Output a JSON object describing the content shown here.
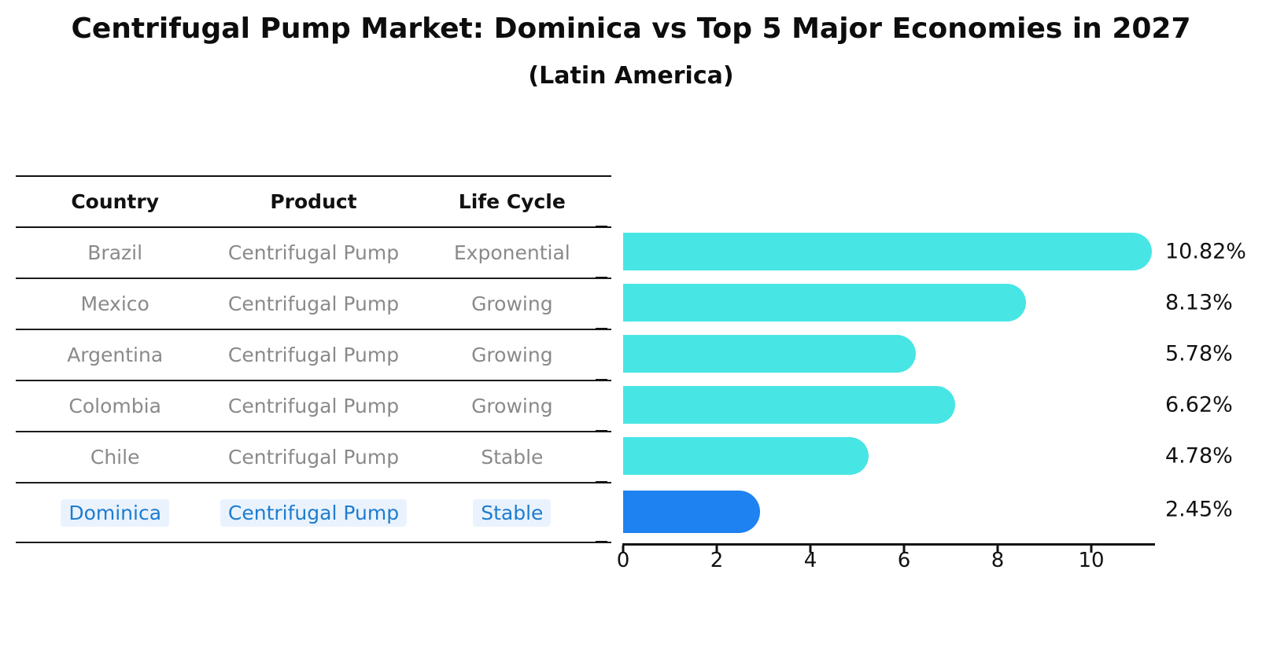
{
  "title": "Centrifugal Pump Market: Dominica vs Top 5 Major Economies in 2027",
  "subtitle": "(Latin America)",
  "table": {
    "headers": [
      "Country",
      "Product",
      "Life Cycle"
    ],
    "rows": [
      {
        "country": "Brazil",
        "product": "Centrifugal Pump",
        "life_cycle": "Exponential"
      },
      {
        "country": "Mexico",
        "product": "Centrifugal Pump",
        "life_cycle": "Growing"
      },
      {
        "country": "Argentina",
        "product": "Centrifugal Pump",
        "life_cycle": "Growing"
      },
      {
        "country": "Colombia",
        "product": "Centrifugal Pump",
        "life_cycle": "Growing"
      },
      {
        "country": "Chile",
        "product": "Centrifugal Pump",
        "life_cycle": "Stable"
      },
      {
        "country": "Dominica",
        "product": "Centrifugal Pump",
        "life_cycle": "Stable"
      }
    ]
  },
  "chart_data": {
    "type": "bar",
    "orientation": "horizontal",
    "categories": [
      "Brazil",
      "Mexico",
      "Argentina",
      "Colombia",
      "Chile",
      "Dominica"
    ],
    "values": [
      10.82,
      8.13,
      5.78,
      6.62,
      4.78,
      2.45
    ],
    "value_labels": [
      "10.82%",
      "8.13%",
      "5.78%",
      "6.62%",
      "4.78%",
      "2.45%"
    ],
    "xticks": [
      0,
      2,
      4,
      6,
      8,
      10
    ],
    "xtick_labels": [
      "0",
      "2",
      "4",
      "6",
      "8",
      "10"
    ],
    "xlim": [
      0,
      11.35
    ],
    "highlight_index": 5,
    "legend": "none",
    "grid": "off"
  },
  "colors": {
    "bar": "#48e5e5",
    "highlight_bar": "#1e82f0",
    "highlight_text": "#1e7ccf",
    "highlight_chip_bg": "#eaf3fd",
    "row_text": "#8a8a8a",
    "axis": "#111111"
  }
}
